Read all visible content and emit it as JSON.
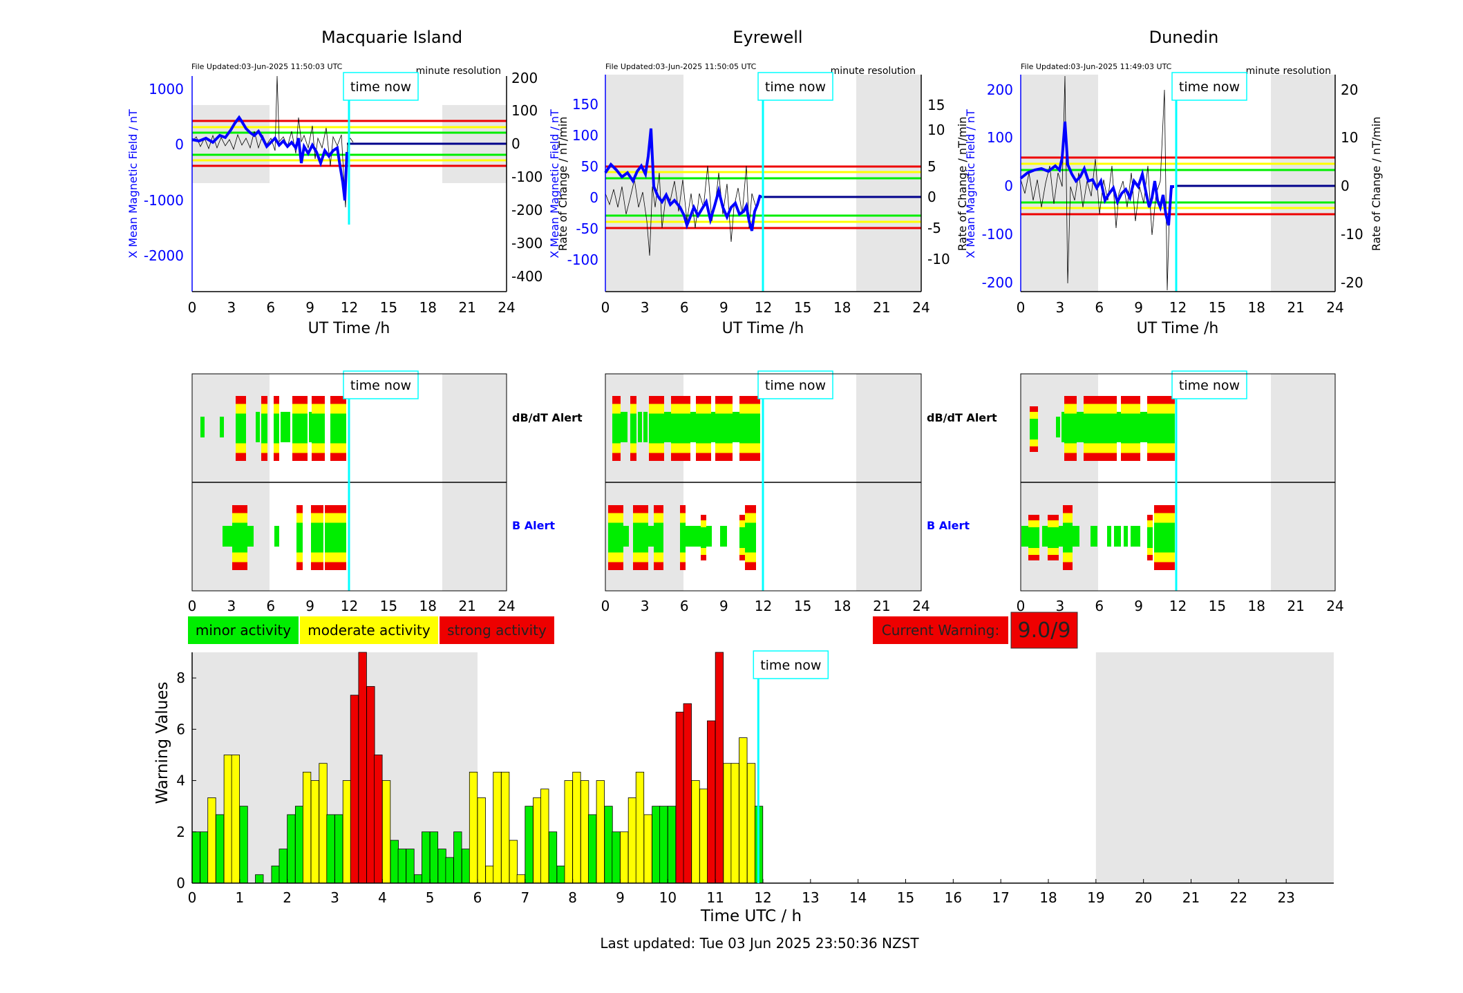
{
  "colors": {
    "minor": "#00ee00",
    "moderate": "#ffff00",
    "strong": "#ee0000",
    "night_shade": "#e6e6e6",
    "time_now": "#00ffff",
    "field": "#0000ff",
    "rate": "#000000",
    "label_red": "#dd0000"
  },
  "common": {
    "time_now_label": "time now",
    "x_axis_label": "UT Time /h",
    "x_ticks": [
      "0",
      "3",
      "6",
      "9",
      "12",
      "15",
      "18",
      "21",
      "24"
    ],
    "resolution": "minute resolution",
    "dbdt_label": "dB/dT Alert",
    "b_label": "B Alert"
  },
  "legend": {
    "minor": "minor activity",
    "moderate": "moderate activity",
    "strong": "strong activity"
  },
  "warning": {
    "label": "Current Warning:",
    "value": "9.0/9"
  },
  "stations": [
    {
      "name": "Macquarie Island",
      "file_updated": "File Updated:03-Jun-2025 11:50:03 UTC",
      "left_axis_label": "X Mean Magnetic Field / nT",
      "right_axis_label": "Rate of Change / nT/min",
      "left_ticks": [
        "1000",
        "0",
        "-1000",
        "-2000"
      ],
      "right_ticks": [
        "200",
        "100",
        "0",
        "-100",
        "-200",
        "-300",
        "-400"
      ]
    },
    {
      "name": "Eyrewell",
      "file_updated": "File Updated:03-Jun-2025 11:50:05 UTC",
      "left_axis_label": "X Mean Magnetic Field / nT",
      "right_axis_label": "Rate of Change / nT/min",
      "left_ticks": [
        "150",
        "100",
        "50",
        "0",
        "-50",
        "-100"
      ],
      "right_ticks": [
        "15",
        "10",
        "5",
        "0",
        "-5",
        "-10"
      ]
    },
    {
      "name": "Dunedin",
      "file_updated": "File Updated:03-Jun-2025 11:49:03 UTC",
      "left_axis_label": "X Mean Magnetic Field / nT",
      "right_axis_label": "Rate of Change / nT/min",
      "left_ticks": [
        "200",
        "100",
        "0",
        "-100",
        "-200"
      ],
      "right_ticks": [
        "20",
        "10",
        "0",
        "-10",
        "-20"
      ]
    }
  ],
  "chart_data": [
    {
      "type": "bar",
      "title": "",
      "xlabel": "Time UTC / h",
      "ylabel": "Warning Values",
      "ylim": [
        0,
        9
      ],
      "y_ticks": [
        "0",
        "2",
        "4",
        "6",
        "8"
      ],
      "x_ticks": [
        "0",
        "1",
        "2",
        "3",
        "4",
        "5",
        "6",
        "7",
        "8",
        "9",
        "10",
        "11",
        "12",
        "13",
        "14",
        "15",
        "16",
        "17",
        "18",
        "19",
        "20",
        "21",
        "22",
        "23"
      ],
      "xlim": [
        0,
        24
      ],
      "bar_width_h": 0.1667,
      "shaded_intervals_h": [
        [
          0,
          6
        ],
        [
          19,
          24
        ]
      ],
      "time_now_h": 11.83,
      "bars": [
        {
          "x": 0.0,
          "y": 2.0,
          "level": "minor"
        },
        {
          "x": 0.17,
          "y": 2.0,
          "level": "minor"
        },
        {
          "x": 0.33,
          "y": 3.33,
          "level": "moderate"
        },
        {
          "x": 0.5,
          "y": 2.67,
          "level": "minor"
        },
        {
          "x": 0.67,
          "y": 5.0,
          "level": "moderate"
        },
        {
          "x": 0.83,
          "y": 5.0,
          "level": "moderate"
        },
        {
          "x": 1.0,
          "y": 3.0,
          "level": "minor"
        },
        {
          "x": 1.17,
          "y": 0.0,
          "level": "minor"
        },
        {
          "x": 1.33,
          "y": 0.33,
          "level": "minor"
        },
        {
          "x": 1.5,
          "y": 0.0,
          "level": "minor"
        },
        {
          "x": 1.67,
          "y": 0.67,
          "level": "minor"
        },
        {
          "x": 1.83,
          "y": 1.33,
          "level": "minor"
        },
        {
          "x": 2.0,
          "y": 2.67,
          "level": "minor"
        },
        {
          "x": 2.17,
          "y": 3.0,
          "level": "minor"
        },
        {
          "x": 2.33,
          "y": 4.33,
          "level": "moderate"
        },
        {
          "x": 2.5,
          "y": 4.0,
          "level": "moderate"
        },
        {
          "x": 2.67,
          "y": 4.67,
          "level": "moderate"
        },
        {
          "x": 2.83,
          "y": 2.67,
          "level": "minor"
        },
        {
          "x": 3.0,
          "y": 2.67,
          "level": "minor"
        },
        {
          "x": 3.17,
          "y": 4.0,
          "level": "moderate"
        },
        {
          "x": 3.33,
          "y": 7.33,
          "level": "strong"
        },
        {
          "x": 3.5,
          "y": 9.0,
          "level": "strong"
        },
        {
          "x": 3.67,
          "y": 7.67,
          "level": "strong"
        },
        {
          "x": 3.83,
          "y": 5.0,
          "level": "strong"
        },
        {
          "x": 4.0,
          "y": 4.0,
          "level": "moderate"
        },
        {
          "x": 4.17,
          "y": 1.67,
          "level": "minor"
        },
        {
          "x": 4.33,
          "y": 1.33,
          "level": "minor"
        },
        {
          "x": 4.5,
          "y": 1.33,
          "level": "minor"
        },
        {
          "x": 4.67,
          "y": 0.33,
          "level": "minor"
        },
        {
          "x": 4.83,
          "y": 2.0,
          "level": "minor"
        },
        {
          "x": 5.0,
          "y": 2.0,
          "level": "minor"
        },
        {
          "x": 5.17,
          "y": 1.33,
          "level": "minor"
        },
        {
          "x": 5.33,
          "y": 1.0,
          "level": "minor"
        },
        {
          "x": 5.5,
          "y": 2.0,
          "level": "minor"
        },
        {
          "x": 5.67,
          "y": 1.33,
          "level": "minor"
        },
        {
          "x": 5.83,
          "y": 4.33,
          "level": "moderate"
        },
        {
          "x": 6.0,
          "y": 3.33,
          "level": "moderate"
        },
        {
          "x": 6.17,
          "y": 0.67,
          "level": "moderate"
        },
        {
          "x": 6.33,
          "y": 4.33,
          "level": "moderate"
        },
        {
          "x": 6.5,
          "y": 4.33,
          "level": "moderate"
        },
        {
          "x": 6.67,
          "y": 1.67,
          "level": "moderate"
        },
        {
          "x": 6.83,
          "y": 0.33,
          "level": "moderate"
        },
        {
          "x": 7.0,
          "y": 3.0,
          "level": "minor"
        },
        {
          "x": 7.17,
          "y": 3.33,
          "level": "moderate"
        },
        {
          "x": 7.33,
          "y": 3.67,
          "level": "moderate"
        },
        {
          "x": 7.5,
          "y": 2.0,
          "level": "minor"
        },
        {
          "x": 7.67,
          "y": 0.67,
          "level": "minor"
        },
        {
          "x": 7.83,
          "y": 4.0,
          "level": "moderate"
        },
        {
          "x": 8.0,
          "y": 4.33,
          "level": "moderate"
        },
        {
          "x": 8.17,
          "y": 4.0,
          "level": "moderate"
        },
        {
          "x": 8.33,
          "y": 2.67,
          "level": "minor"
        },
        {
          "x": 8.5,
          "y": 4.0,
          "level": "moderate"
        },
        {
          "x": 8.67,
          "y": 3.0,
          "level": "minor"
        },
        {
          "x": 8.83,
          "y": 2.0,
          "level": "minor"
        },
        {
          "x": 9.0,
          "y": 2.0,
          "level": "moderate"
        },
        {
          "x": 9.17,
          "y": 3.33,
          "level": "moderate"
        },
        {
          "x": 9.33,
          "y": 4.33,
          "level": "moderate"
        },
        {
          "x": 9.5,
          "y": 2.67,
          "level": "moderate"
        },
        {
          "x": 9.67,
          "y": 3.0,
          "level": "minor"
        },
        {
          "x": 9.83,
          "y": 3.0,
          "level": "minor"
        },
        {
          "x": 10.0,
          "y": 3.0,
          "level": "minor"
        },
        {
          "x": 10.17,
          "y": 6.67,
          "level": "strong"
        },
        {
          "x": 10.33,
          "y": 7.0,
          "level": "strong"
        },
        {
          "x": 10.5,
          "y": 4.0,
          "level": "moderate"
        },
        {
          "x": 10.67,
          "y": 3.67,
          "level": "moderate"
        },
        {
          "x": 10.83,
          "y": 6.33,
          "level": "strong"
        },
        {
          "x": 11.0,
          "y": 9.0,
          "level": "strong"
        },
        {
          "x": 11.17,
          "y": 4.67,
          "level": "moderate"
        },
        {
          "x": 11.33,
          "y": 4.67,
          "level": "moderate"
        },
        {
          "x": 11.5,
          "y": 5.67,
          "level": "moderate"
        },
        {
          "x": 11.67,
          "y": 4.67,
          "level": "moderate"
        },
        {
          "x": 11.83,
          "y": 3.0,
          "level": "minor"
        }
      ]
    }
  ],
  "footer": {
    "last_updated": "Last updated: Tue 03 Jun 2025 23:50:36 NZST"
  }
}
